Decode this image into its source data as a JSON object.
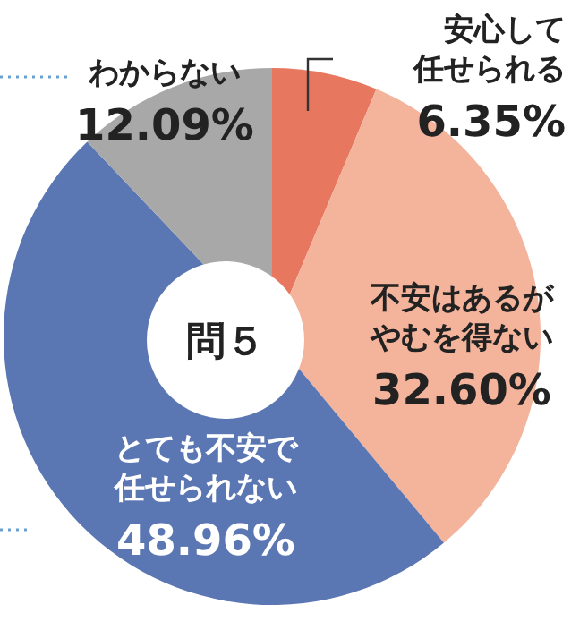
{
  "chart_data": {
    "type": "pie",
    "title": "問５",
    "categories": [
      "安心して任せられる",
      "不安はあるがやむを得ない",
      "とても不安で任せられない",
      "わからない"
    ],
    "values": [
      6.35,
      32.6,
      48.96,
      12.09
    ],
    "value_labels": [
      "6.35%",
      "32.60%",
      "48.96%",
      "12.09%"
    ],
    "colors": [
      "#e8775f",
      "#f4b39b",
      "#5b77b3",
      "#a8a8a8"
    ]
  }
}
